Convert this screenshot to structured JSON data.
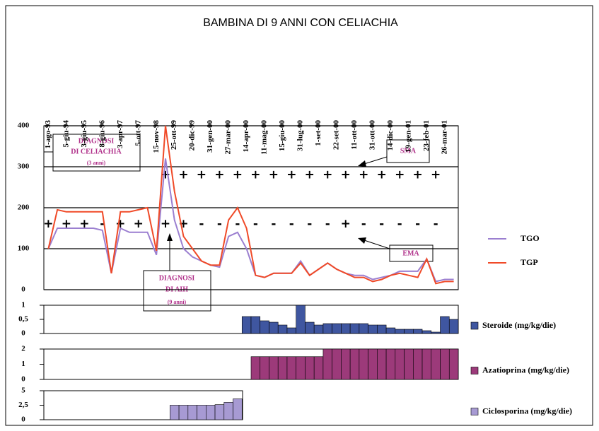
{
  "chart_data": [
    {
      "type": "line",
      "title": "BAMBINA DI 9 ANNI CON CELIACHIA",
      "categories": [
        "1-ago-93",
        null,
        "5-giu-94",
        null,
        "3-giu-95",
        null,
        "8-giu-96",
        null,
        "3-apr-97",
        null,
        "5-ott-97",
        null,
        "15-nov-98",
        null,
        "25-ott-99",
        null,
        "20-dic-99",
        null,
        "31-gen-00",
        null,
        "27-mar-00",
        null,
        "14-apr-00",
        null,
        "11-mag-00",
        null,
        "15-giu-00",
        null,
        "31-lug-00",
        null,
        "1-set-00",
        null,
        "22-set-00",
        null,
        "11-ott-00",
        null,
        "31-ott-00",
        null,
        "14-dic-00",
        null,
        "19-gen-01",
        null,
        "23-feb-01",
        null,
        "26-mar-01",
        null
      ],
      "series": [
        {
          "name": "TGO",
          "color": "#9b7fd0",
          "values": [
            100,
            150,
            150,
            150,
            150,
            150,
            145,
            40,
            150,
            140,
            140,
            140,
            85,
            320,
            170,
            100,
            80,
            70,
            60,
            55,
            130,
            140,
            100,
            35,
            30,
            40,
            40,
            40,
            70,
            35,
            50,
            65,
            50,
            40,
            35,
            35,
            25,
            30,
            35,
            45,
            45,
            45,
            75,
            20,
            25,
            25
          ]
        },
        {
          "name": "TGP",
          "color": "#f04a28",
          "values": [
            100,
            195,
            190,
            190,
            190,
            190,
            190,
            40,
            190,
            190,
            195,
            200,
            95,
            400,
            240,
            130,
            100,
            70,
            60,
            60,
            170,
            200,
            150,
            35,
            30,
            40,
            40,
            40,
            65,
            35,
            50,
            65,
            50,
            40,
            30,
            30,
            20,
            25,
            35,
            40,
            35,
            30,
            75,
            15,
            20,
            20
          ]
        }
      ],
      "markers": [
        {
          "name": "SMA",
          "values": [
            null,
            null,
            null,
            null,
            null,
            null,
            null,
            null,
            null,
            null,
            null,
            null,
            null,
            280,
            null,
            280,
            null,
            280,
            null,
            280,
            null,
            280,
            null,
            280,
            null,
            280,
            null,
            280,
            null,
            280,
            null,
            280,
            null,
            280,
            null,
            280,
            null,
            280,
            null,
            280,
            null,
            280,
            null,
            280,
            null,
            null
          ],
          "symbols": [
            null,
            null,
            null,
            null,
            null,
            null,
            null,
            null,
            null,
            null,
            null,
            null,
            null,
            "+",
            null,
            "+",
            null,
            "+",
            null,
            "+",
            null,
            "+",
            null,
            "+",
            null,
            "+",
            null,
            "+",
            null,
            "+",
            null,
            "+",
            null,
            "+",
            null,
            "+",
            null,
            "+",
            null,
            "+",
            null,
            "+",
            null,
            "+",
            null,
            null
          ]
        },
        {
          "name": "EMA",
          "values": [
            160,
            null,
            160,
            null,
            160,
            null,
            160,
            null,
            160,
            null,
            160,
            null,
            null,
            160,
            null,
            160,
            null,
            160,
            null,
            160,
            null,
            160,
            null,
            160,
            null,
            160,
            null,
            160,
            null,
            160,
            null,
            160,
            null,
            160,
            null,
            160,
            null,
            160,
            null,
            160,
            null,
            160,
            null,
            160,
            null,
            null
          ],
          "symbols": [
            "+",
            null,
            "+",
            null,
            "+",
            null,
            "-",
            null,
            "+",
            null,
            "+",
            null,
            null,
            "+",
            null,
            "+",
            null,
            "-",
            null,
            "-",
            null,
            "-",
            null,
            "-",
            null,
            "-",
            null,
            "-",
            null,
            "-",
            null,
            "-",
            null,
            "+",
            null,
            "-",
            null,
            "-",
            null,
            "-",
            null,
            "-",
            null,
            "-",
            null,
            null
          ]
        }
      ],
      "annotations": [
        {
          "lines": [
            "DIAGNOSI",
            "DI CELIACHIA",
            "(3 anni)"
          ]
        },
        {
          "lines": [
            "DIAGNOSI",
            "DI AIH",
            "(9 anni)"
          ]
        }
      ],
      "ylim": [
        0,
        400
      ],
      "yticks": [
        0,
        100,
        200,
        300,
        400
      ],
      "grid": true
    },
    {
      "type": "bar",
      "name": "Steroide (mg/kg/die)",
      "color": "#3f56a0",
      "values": [
        null,
        null,
        null,
        null,
        null,
        null,
        null,
        null,
        null,
        null,
        null,
        null,
        null,
        null,
        null,
        null,
        null,
        null,
        null,
        null,
        null,
        null,
        0.6,
        0.6,
        0.45,
        0.4,
        0.3,
        0.2,
        1,
        0.4,
        0.3,
        0.35,
        0.35,
        0.35,
        0.35,
        0.35,
        0.3,
        0.3,
        0.2,
        0.15,
        0.15,
        0.15,
        0.1,
        0.05,
        0.6,
        0.5
      ],
      "ylim": [
        0,
        1
      ],
      "yticks": [
        0,
        {
          "value": 0.5,
          "label": "0,5"
        },
        1
      ]
    },
    {
      "type": "bar",
      "name": "Azatioprina (mg/kg/die)",
      "color": "#9c3a7a",
      "values": [
        null,
        null,
        null,
        null,
        null,
        null,
        null,
        null,
        null,
        null,
        null,
        null,
        null,
        null,
        null,
        null,
        null,
        null,
        null,
        null,
        null,
        null,
        null,
        1.5,
        1.5,
        1.5,
        1.5,
        1.5,
        1.5,
        1.5,
        1.5,
        2,
        2,
        2,
        2,
        2,
        2,
        2,
        2,
        2,
        2,
        2,
        2,
        2,
        2,
        2
      ],
      "ylim": [
        0,
        2
      ],
      "yticks": [
        0,
        1,
        2
      ]
    },
    {
      "type": "bar",
      "name": "Ciclosporina (mg/kg/die)",
      "color": "#a79ad3",
      "values": [
        null,
        null,
        null,
        null,
        null,
        null,
        null,
        null,
        null,
        null,
        null,
        null,
        null,
        null,
        2.5,
        2.5,
        2.5,
        2.5,
        2.5,
        2.6,
        3,
        3.6,
        null,
        null,
        null,
        null,
        null,
        null,
        null,
        null,
        null,
        null,
        null,
        null,
        null,
        null,
        null,
        null,
        null,
        null,
        null,
        null,
        null,
        null,
        null,
        null
      ],
      "ylim": [
        0,
        5
      ],
      "yticks": [
        0,
        {
          "value": 2.5,
          "label": "2,5"
        },
        5
      ]
    }
  ]
}
